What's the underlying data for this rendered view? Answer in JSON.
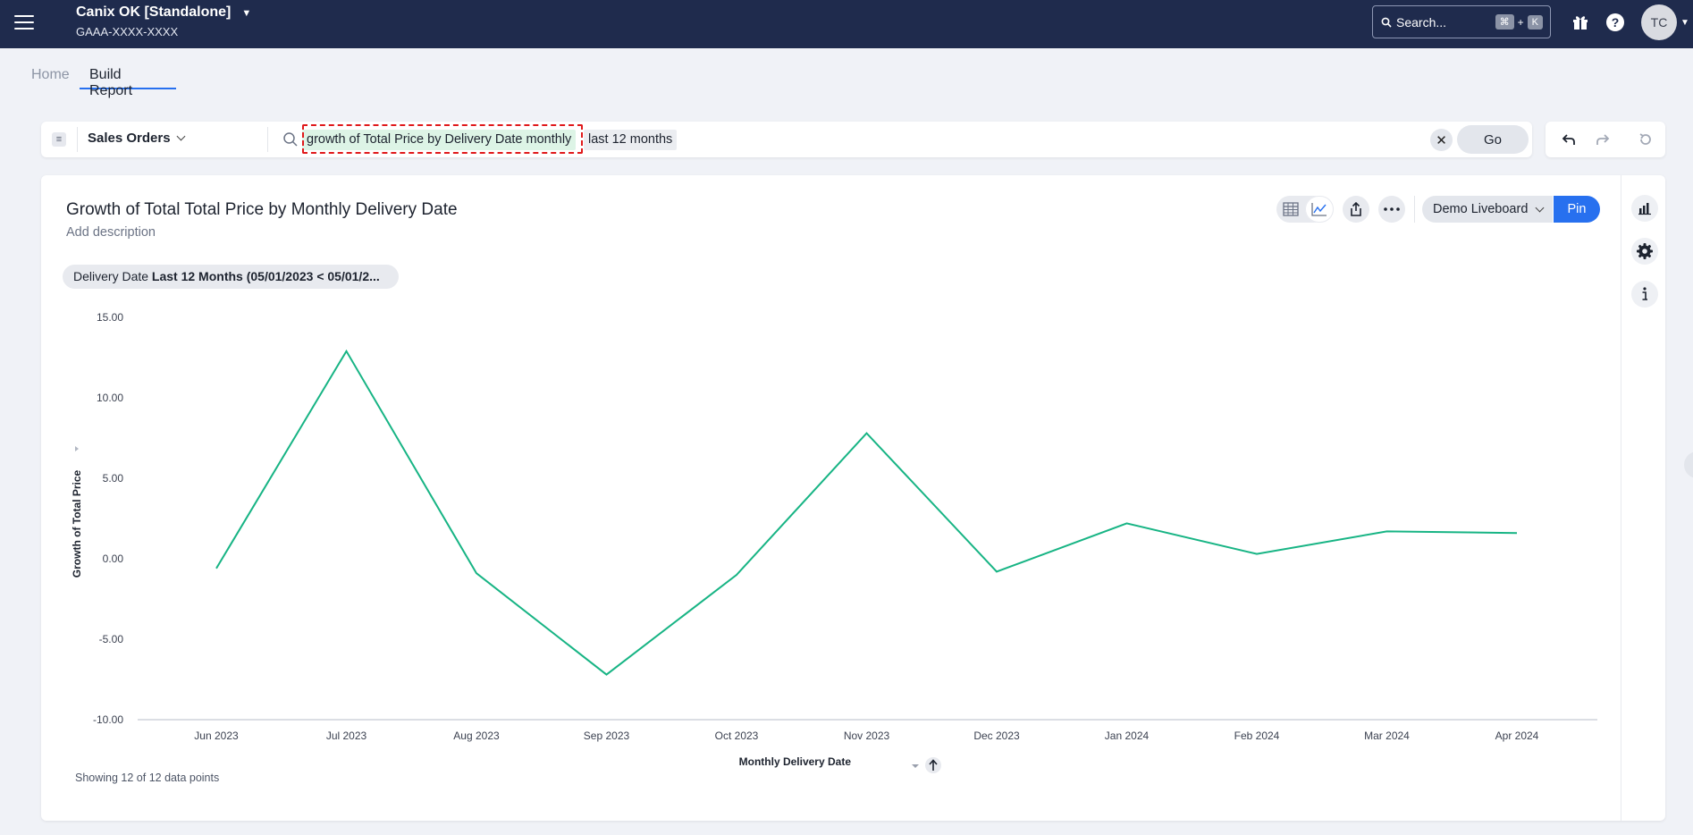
{
  "header": {
    "org_name": "Canix OK [Standalone]",
    "org_id": "GAAA-XXXX-XXXX",
    "search_placeholder": "Search...",
    "shortcut_key1": "⌘",
    "shortcut_plus": "+",
    "shortcut_key2": "K",
    "avatar_initials": "TC"
  },
  "breadcrumb": {
    "home": "Home",
    "current": "Build Report"
  },
  "query": {
    "data_source": "Sales Orders",
    "token_main": "growth of Total Price by Delivery Date monthly",
    "token_filter": "last 12 months",
    "go_label": "Go"
  },
  "card": {
    "title": "Growth of Total Total Price by Monthly Delivery Date",
    "description": "Add description",
    "liveboard": "Demo Liveboard",
    "pin_label": "Pin",
    "filter_label": "Delivery Date",
    "filter_value": "Last 12 Months (05/01/2023 < 05/01/2...",
    "data_points_note": "Showing 12 of 12 data points"
  },
  "colors": {
    "navbar": "#1f2b4d",
    "accent": "#2770ef",
    "series": "#17b484",
    "highlight": "#e0191b"
  },
  "chart_data": {
    "type": "line",
    "title": "Growth of Total Total Price by Monthly Delivery Date",
    "xlabel": "Monthly Delivery Date",
    "ylabel": "Growth of Total Price",
    "ylim": [
      -10,
      15
    ],
    "yticks": [
      "15.00",
      "10.00",
      "5.00",
      "0.00",
      "-5.00",
      "-10.00"
    ],
    "ytick_values": [
      15,
      10,
      5,
      0,
      -5,
      -10
    ],
    "categories": [
      "Jun 2023",
      "Jul 2023",
      "Aug 2023",
      "Sep 2023",
      "Oct 2023",
      "Nov 2023",
      "Dec 2023",
      "Jan 2024",
      "Feb 2024",
      "Mar 2024",
      "Apr 2024"
    ],
    "series": [
      {
        "name": "Growth of Total Price",
        "values": [
          -0.6,
          12.9,
          -0.9,
          -7.2,
          -1.0,
          7.8,
          -0.8,
          2.2,
          0.3,
          1.7,
          1.6
        ]
      }
    ],
    "grid": false
  }
}
